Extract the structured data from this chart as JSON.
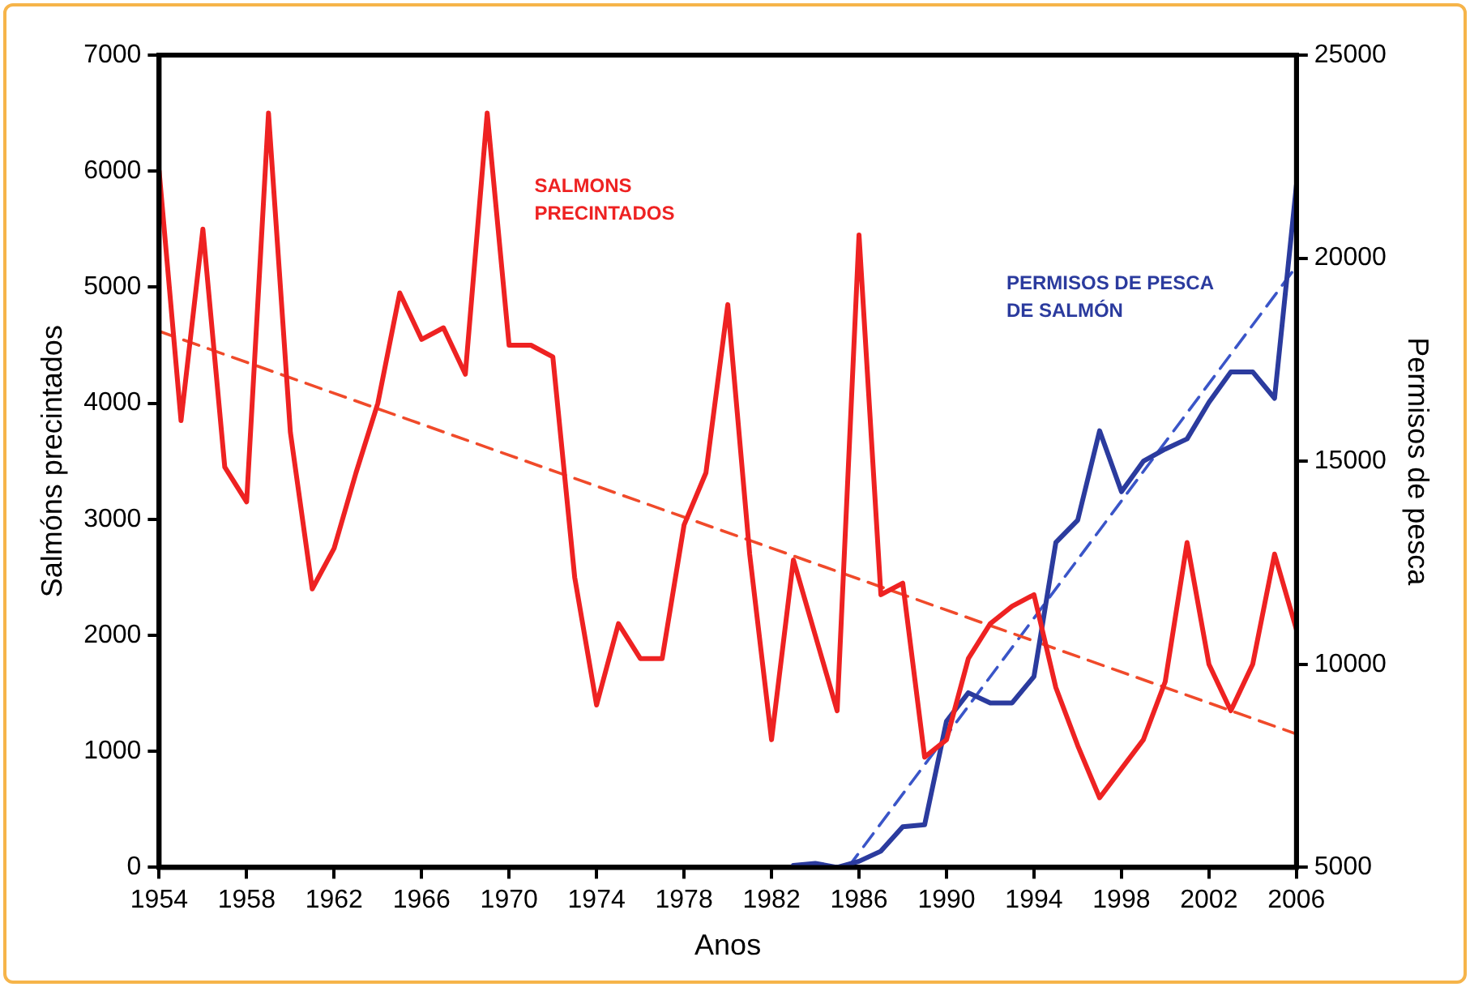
{
  "chart_data": {
    "type": "line",
    "xlabel": "Anos",
    "ylabel": "Salmóns precintados",
    "y2label": "Permisos de pesca",
    "xlim": [
      1954,
      2006
    ],
    "xticks": [
      1954,
      1958,
      1962,
      1966,
      1970,
      1974,
      1978,
      1982,
      1986,
      1990,
      1994,
      1998,
      2002,
      2006
    ],
    "ylim": [
      0,
      7000
    ],
    "yticks": [
      0,
      1000,
      2000,
      3000,
      4000,
      5000,
      6000,
      7000
    ],
    "y2lim": [
      5000,
      25000
    ],
    "y2ticks": [
      5000,
      10000,
      15000,
      20000,
      25000
    ],
    "grid": false,
    "legend": false,
    "marker": "none",
    "line_style": "solid",
    "series": [
      {
        "name": "SALMONS PRECINTADOS",
        "color": "#ee2222",
        "x": [
          1954,
          1955,
          1956,
          1957,
          1958,
          1959,
          1960,
          1961,
          1962,
          1963,
          1964,
          1965,
          1966,
          1967,
          1968,
          1969,
          1970,
          1971,
          1972,
          1973,
          1974,
          1975,
          1976,
          1977,
          1978,
          1979,
          1980,
          1981,
          1982,
          1983,
          1984,
          1985,
          1986,
          1987,
          1988,
          1989,
          1990,
          1991,
          1992,
          1993,
          1994,
          1995,
          1996,
          1997,
          1998,
          1999,
          2000,
          2001,
          2002,
          2003,
          2004,
          2005,
          2006
        ],
        "values": [
          6000,
          3850,
          5500,
          3450,
          3150,
          6500,
          3750,
          2400,
          2750,
          3400,
          4000,
          4950,
          4550,
          4650,
          4250,
          6500,
          4500,
          4500,
          4400,
          2500,
          1400,
          2100,
          1800,
          1800,
          2950,
          3400,
          4850,
          2700,
          1100,
          2650,
          2000,
          1350,
          5450,
          2350,
          2450,
          950,
          1100,
          1800,
          2100,
          2250,
          2350,
          1550,
          1050,
          600,
          850,
          1100,
          1600,
          2800,
          1750,
          1350,
          1750,
          2700,
          2050
        ]
      },
      {
        "name": "PERMISOS DE PESCA DE SALMÓN",
        "color": "#2b3b9e",
        "axis": "y2",
        "x": [
          1983,
          1984,
          1985,
          1986,
          1987,
          1988,
          1989,
          1990,
          1991,
          1992,
          1993,
          1994,
          1995,
          1996,
          1997,
          1998,
          1999,
          2000,
          2001,
          2002,
          2003,
          2004,
          2005,
          2006
        ],
        "values": [
          5050,
          5100,
          5000,
          5150,
          5400,
          6000,
          6050,
          8600,
          9300,
          9050,
          9050,
          9700,
          13000,
          13550,
          15750,
          14250,
          15000,
          15300,
          15550,
          16450,
          17200,
          17200,
          16550,
          21800
        ]
      },
      {
        "type": "line",
        "color": "#f04a2a",
        "line_style": "dashed",
        "x": [
          1954,
          2006
        ],
        "values": [
          4620,
          1150
        ]
      },
      {
        "type": "line",
        "color": "#3a55c8",
        "line_style": "dashed",
        "axis": "y2",
        "x": [
          1985.5,
          2006
        ],
        "values": [
          5000,
          19800
        ]
      }
    ]
  }
}
